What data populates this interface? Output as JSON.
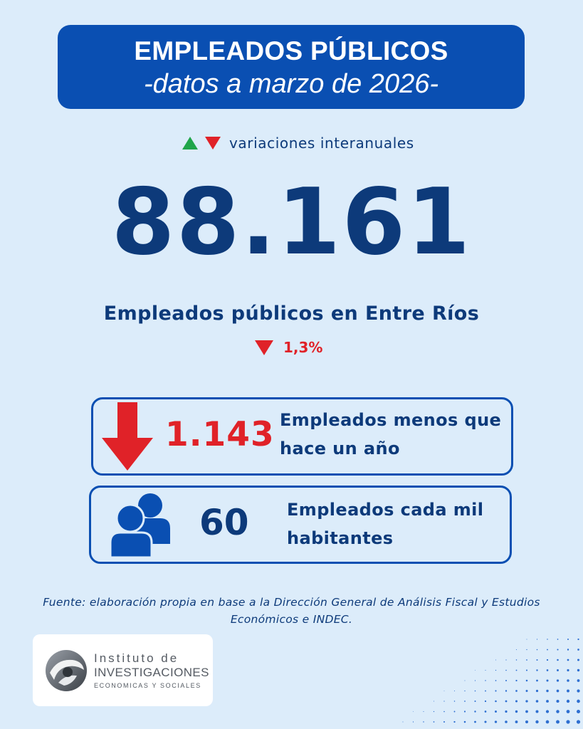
{
  "header": {
    "title": "EMPLEADOS PÚBLICOS",
    "subtitle": "-datos a marzo de 2026-"
  },
  "legend": {
    "up_icon": "triangle-up-icon",
    "down_icon": "triangle-down-icon",
    "label": "variaciones interanuales"
  },
  "headline": {
    "value": "88.161",
    "label": "Empleados públicos en Entre Ríos",
    "change": "1,3%",
    "change_direction": "down"
  },
  "cards": [
    {
      "icon": "arrow-down-icon",
      "value": "1.143",
      "text": "Empleados menos que hace un año"
    },
    {
      "icon": "people-icon",
      "value": "60",
      "text": "Empleados cada mil habitantes"
    }
  ],
  "source": {
    "text": "Fuente: elaboración propia en base a la Dirección General de Análisis Fiscal y Estudios Económicos e INDEC."
  },
  "logo": {
    "line1": "Instituto de",
    "line2": "INVESTIGACIONES",
    "line3": "ECONOMICAS Y SOCIALES"
  },
  "colors": {
    "background": "#dcecfa",
    "primary_blue": "#0a4fb2",
    "text_navy": "#0d3a7a",
    "red": "#e02228",
    "green": "#1fa54a"
  }
}
